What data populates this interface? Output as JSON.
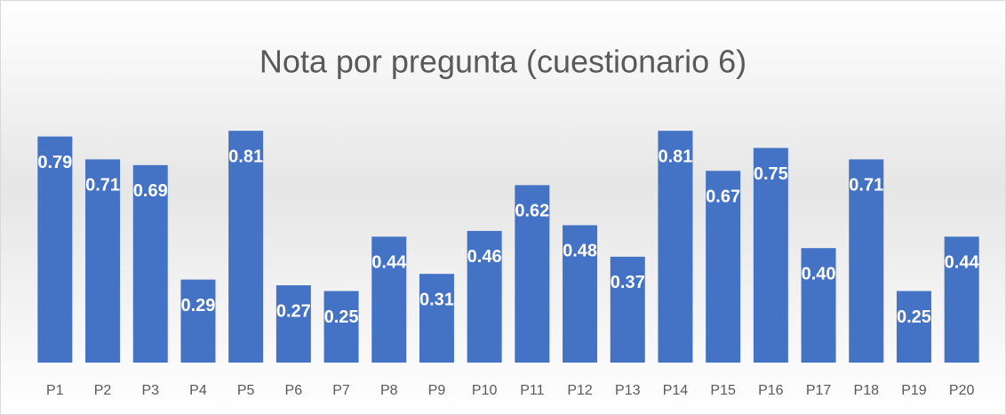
{
  "chart_data": {
    "type": "bar",
    "title": "Nota por pregunta (cuestionario 6)",
    "categories": [
      "P1",
      "P2",
      "P3",
      "P4",
      "P5",
      "P6",
      "P7",
      "P8",
      "P9",
      "P10",
      "P11",
      "P12",
      "P13",
      "P14",
      "P15",
      "P16",
      "P17",
      "P18",
      "P19",
      "P20"
    ],
    "values": [
      0.79,
      0.71,
      0.69,
      0.29,
      0.81,
      0.27,
      0.25,
      0.44,
      0.31,
      0.46,
      0.62,
      0.48,
      0.37,
      0.81,
      0.67,
      0.75,
      0.4,
      0.71,
      0.25,
      0.44
    ],
    "value_labels": [
      "0.79",
      "0.71",
      "0.69",
      "0.29",
      "0.81",
      "0.27",
      "0.25",
      "0.44",
      "0.31",
      "0.46",
      "0.62",
      "0.48",
      "0.37",
      "0.81",
      "0.67",
      "0.75",
      "0.40",
      "0.71",
      "0.25",
      "0.44"
    ],
    "color": "#4472c4"
  }
}
